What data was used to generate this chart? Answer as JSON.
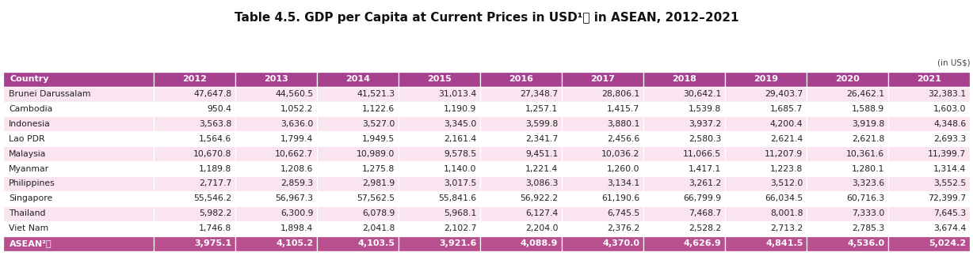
{
  "title": "Table 4.5. GDP per Capita at Current Prices in USD¹⦾ in ASEAN, 2012–2021",
  "note": "(in US$)",
  "columns": [
    "Country",
    "2012",
    "2013",
    "2014",
    "2015",
    "2016",
    "2017",
    "2018",
    "2019",
    "2020",
    "2021"
  ],
  "rows": [
    [
      "Brunei Darussalam",
      "47,647.8",
      "44,560.5",
      "41,521.3",
      "31,013.4",
      "27,348.7",
      "28,806.1",
      "30,642.1",
      "29,403.7",
      "26,462.1",
      "32,383.1"
    ],
    [
      "Cambodia",
      "950.4",
      "1,052.2",
      "1,122.6",
      "1,190.9",
      "1,257.1",
      "1,415.7",
      "1,539.8",
      "1,685.7",
      "1,588.9",
      "1,603.0"
    ],
    [
      "Indonesia",
      "3,563.8",
      "3,636.0",
      "3,527.0",
      "3,345.0",
      "3,599.8",
      "3,880.1",
      "3,937.2",
      "4,200.4",
      "3,919.8",
      "4,348.6"
    ],
    [
      "Lao PDR",
      "1,564.6",
      "1,799.4",
      "1,949.5",
      "2,161.4",
      "2,341.7",
      "2,456.6",
      "2,580.3",
      "2,621.4",
      "2,621.8",
      "2,693.3"
    ],
    [
      "Malaysia",
      "10,670.8",
      "10,662.7",
      "10,989.0",
      "9,578.5",
      "9,451.1",
      "10,036.2",
      "11,066.5",
      "11,207.9",
      "10,361.6",
      "11,399.7"
    ],
    [
      "Myanmar",
      "1,189.8",
      "1,208.6",
      "1,275.8",
      "1,140.0",
      "1,221.4",
      "1,260.0",
      "1,417.1",
      "1,223.8",
      "1,280.1",
      "1,314.4"
    ],
    [
      "Philippines",
      "2,717.7",
      "2,859.3",
      "2,981.9",
      "3,017.5",
      "3,086.3",
      "3,134.1",
      "3,261.2",
      "3,512.0",
      "3,323.6",
      "3,552.5"
    ],
    [
      "Singapore",
      "55,546.2",
      "56,967.3",
      "57,562.5",
      "55,841.6",
      "56,922.2",
      "61,190.6",
      "66,799.9",
      "66,034.5",
      "60,716.3",
      "72,399.7"
    ],
    [
      "Thailand",
      "5,982.2",
      "6,300.9",
      "6,078.9",
      "5,968.1",
      "6,127.4",
      "6,745.5",
      "7,468.7",
      "8,001.8",
      "7,333.0",
      "7,645.3"
    ],
    [
      "Viet Nam",
      "1,746.8",
      "1,898.4",
      "2,041.8",
      "2,102.7",
      "2,204.0",
      "2,376.2",
      "2,528.2",
      "2,713.2",
      "2,785.3",
      "3,674.4"
    ]
  ],
  "footer_row": [
    "ASEAN²⦾",
    "3,975.1",
    "4,105.2",
    "4,103.5",
    "3,921.6",
    "4,088.9",
    "4,370.0",
    "4,626.9",
    "4,841.5",
    "4,536.0",
    "5,024.2"
  ],
  "header_bg": "#a84090",
  "header_text": "#ffffff",
  "odd_row_bg": "#f9e4f0",
  "even_row_bg": "#ffffff",
  "footer_bg": "#b85090",
  "footer_text": "#ffffff",
  "body_text_color": "#222222",
  "title_color": "#111111",
  "col_widths_rel": [
    1.85,
    1.0,
    1.0,
    1.0,
    1.0,
    1.0,
    1.0,
    1.0,
    1.0,
    1.0,
    1.0
  ]
}
